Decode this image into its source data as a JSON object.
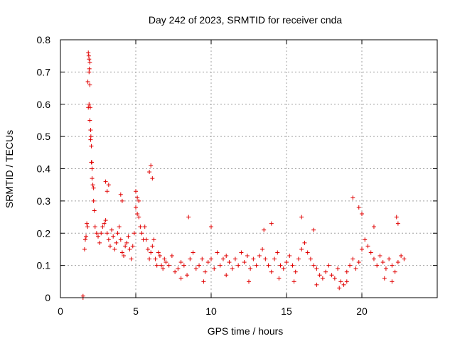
{
  "chart_data": {
    "type": "scatter",
    "title": "Day 242 of 2023, SRMTID for receiver cnda",
    "xlabel": "GPS time / hours",
    "ylabel": "SRMTID / TECUs",
    "xlim": [
      0,
      25
    ],
    "ylim": [
      0,
      0.8
    ],
    "xticks": [
      0,
      5,
      10,
      15,
      20
    ],
    "xtick_labels": [
      "0",
      "5",
      "10",
      "15",
      "20"
    ],
    "yticks": [
      0,
      0.1,
      0.2,
      0.3,
      0.4,
      0.5,
      0.6,
      0.7,
      0.8
    ],
    "ytick_labels": [
      "0",
      "0.1",
      "0.2",
      "0.3",
      "0.4",
      "0.5",
      "0.6",
      "0.7",
      "0.8"
    ],
    "grid": true,
    "marker": "+",
    "color": "#e00000",
    "series": [
      {
        "name": "SRMTID",
        "x": [
          1.5,
          1.5,
          1.6,
          1.65,
          1.7,
          1.75,
          1.8,
          1.82,
          1.85,
          1.88,
          1.9,
          1.92,
          1.95,
          1.98,
          2.0,
          2.02,
          2.05,
          2.08,
          2.1,
          2.15,
          2.2,
          2.25,
          2.3,
          2.4,
          2.5,
          2.6,
          2.7,
          2.8,
          2.9,
          3.0,
          3.1,
          3.2,
          3.3,
          3.4,
          3.5,
          3.6,
          3.7,
          3.8,
          3.9,
          4.0,
          4.1,
          4.2,
          4.3,
          4.4,
          4.5,
          4.6,
          4.7,
          4.8,
          4.9,
          5.0,
          5.1,
          5.2,
          5.3,
          5.4,
          5.5,
          5.6,
          5.7,
          5.8,
          5.9,
          6.0,
          6.1,
          6.2,
          6.3,
          6.4,
          6.5,
          6.6,
          6.7,
          6.8,
          6.9,
          7.0,
          7.2,
          7.4,
          7.6,
          7.8,
          8.0,
          8.2,
          8.4,
          8.6,
          8.8,
          9.0,
          9.2,
          9.4,
          9.6,
          9.8,
          10.0,
          10.2,
          10.4,
          10.6,
          10.8,
          11.0,
          11.2,
          11.4,
          11.6,
          11.8,
          12.0,
          12.2,
          12.4,
          12.6,
          12.8,
          13.0,
          13.2,
          13.4,
          13.6,
          13.8,
          14.0,
          14.2,
          14.4,
          14.6,
          14.8,
          15.0,
          15.2,
          15.4,
          15.6,
          15.8,
          16.0,
          16.2,
          16.4,
          16.6,
          16.8,
          17.0,
          17.2,
          17.4,
          17.6,
          17.8,
          18.0,
          18.2,
          18.4,
          18.6,
          18.8,
          19.0,
          19.2,
          19.4,
          19.6,
          19.8,
          20.0,
          20.2,
          20.4,
          20.6,
          20.8,
          21.0,
          21.2,
          21.4,
          21.6,
          21.8,
          22.0,
          22.2,
          22.4,
          22.6,
          22.8,
          1.85,
          1.9,
          1.95,
          2.0,
          2.05,
          1.9,
          1.95,
          2.1,
          2.2,
          3.0,
          3.1,
          3.2,
          4.0,
          4.1,
          5.0,
          5.1,
          5.2,
          5.9,
          6.0,
          6.1,
          8.5,
          10.0,
          13.5,
          14.0,
          16.0,
          16.8,
          19.4,
          19.8,
          20.0,
          20.8,
          22.3,
          22.4,
          8.0,
          9.5,
          11.0,
          12.5,
          14.5,
          15.5,
          17.0,
          18.5,
          19.0,
          21.5,
          22.0
        ],
        "y": [
          0.0,
          0.005,
          0.15,
          0.18,
          0.19,
          0.23,
          0.22,
          0.67,
          0.76,
          0.75,
          0.74,
          0.71,
          0.66,
          0.59,
          0.52,
          0.5,
          0.47,
          0.42,
          0.37,
          0.35,
          0.3,
          0.27,
          0.22,
          0.2,
          0.19,
          0.17,
          0.2,
          0.22,
          0.23,
          0.24,
          0.2,
          0.18,
          0.16,
          0.21,
          0.19,
          0.15,
          0.17,
          0.2,
          0.22,
          0.18,
          0.14,
          0.13,
          0.16,
          0.17,
          0.19,
          0.15,
          0.12,
          0.16,
          0.2,
          0.28,
          0.26,
          0.25,
          0.22,
          0.2,
          0.18,
          0.22,
          0.18,
          0.15,
          0.12,
          0.14,
          0.16,
          0.18,
          0.12,
          0.1,
          0.14,
          0.13,
          0.1,
          0.09,
          0.12,
          0.11,
          0.1,
          0.13,
          0.08,
          0.09,
          0.11,
          0.1,
          0.07,
          0.12,
          0.14,
          0.09,
          0.1,
          0.12,
          0.08,
          0.11,
          0.12,
          0.09,
          0.14,
          0.1,
          0.12,
          0.13,
          0.11,
          0.09,
          0.12,
          0.1,
          0.14,
          0.11,
          0.13,
          0.09,
          0.12,
          0.1,
          0.13,
          0.15,
          0.12,
          0.1,
          0.08,
          0.12,
          0.14,
          0.1,
          0.09,
          0.11,
          0.13,
          0.1,
          0.08,
          0.12,
          0.15,
          0.17,
          0.14,
          0.12,
          0.1,
          0.09,
          0.07,
          0.06,
          0.08,
          0.1,
          0.07,
          0.06,
          0.09,
          0.05,
          0.04,
          0.08,
          0.1,
          0.12,
          0.09,
          0.11,
          0.15,
          0.18,
          0.16,
          0.14,
          0.12,
          0.1,
          0.13,
          0.11,
          0.09,
          0.12,
          0.1,
          0.08,
          0.11,
          0.13,
          0.12,
          0.59,
          0.6,
          0.55,
          0.49,
          0.42,
          0.7,
          0.73,
          0.4,
          0.34,
          0.36,
          0.33,
          0.35,
          0.32,
          0.3,
          0.33,
          0.31,
          0.3,
          0.39,
          0.41,
          0.37,
          0.25,
          0.22,
          0.21,
          0.23,
          0.25,
          0.21,
          0.31,
          0.28,
          0.26,
          0.22,
          0.25,
          0.23,
          0.06,
          0.05,
          0.07,
          0.05,
          0.06,
          0.05,
          0.04,
          0.03,
          0.05,
          0.06,
          0.05
        ]
      }
    ]
  }
}
